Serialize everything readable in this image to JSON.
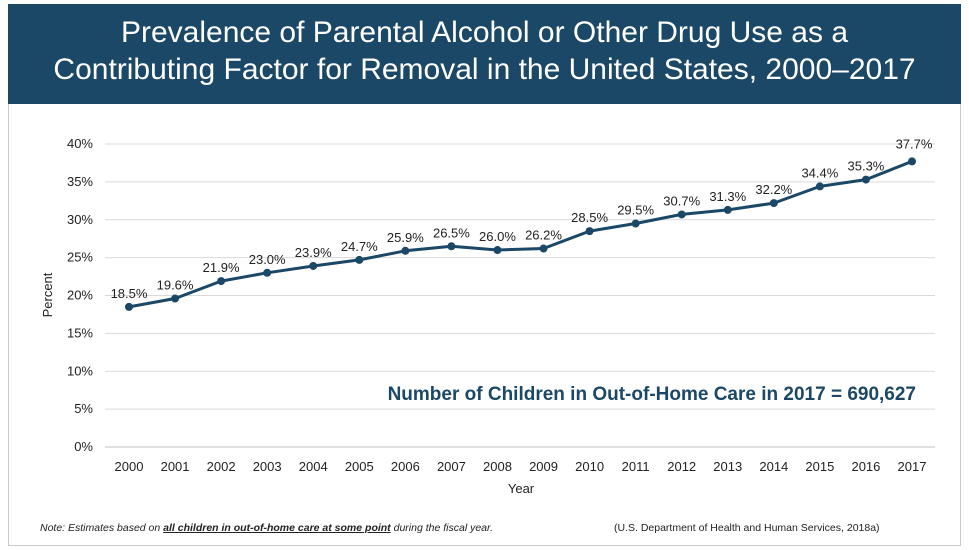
{
  "title_line1": "Prevalence of Parental Alcohol or Other Drug Use as a",
  "title_line2": "Contributing Factor for Removal in the United States, 2000–2017",
  "annotation": "Number of Children in Out-of-Home Care in 2017 = 690,627",
  "note": {
    "prefix": "Note: Estimates based on ",
    "emphasis": "all children in out-of-home care at some point",
    "suffix": " during the fiscal year."
  },
  "source": "(U.S. Department of Health and Human Services, 2018a)",
  "colors": {
    "title_bg": "#1b4866",
    "line": "#1b4866",
    "annotation": "#1b4866",
    "grid": "#d9d9d9"
  },
  "chart_data": {
    "type": "line",
    "title": "Prevalence of Parental Alcohol or Other Drug Use as a Contributing Factor for Removal in the United States, 2000–2017",
    "xlabel": "Year",
    "ylabel": "Percent",
    "ylim": [
      0,
      40
    ],
    "y_ticks": [
      "0%",
      "5%",
      "10%",
      "15%",
      "20%",
      "25%",
      "30%",
      "35%",
      "40%"
    ],
    "grid": true,
    "categories": [
      "2000",
      "2001",
      "2002",
      "2003",
      "2004",
      "2005",
      "2006",
      "2007",
      "2008",
      "2009",
      "2010",
      "2011",
      "2012",
      "2013",
      "2014",
      "2015",
      "2016",
      "2017"
    ],
    "series": [
      {
        "values": [
          18.5,
          19.6,
          21.9,
          23.0,
          23.9,
          24.7,
          25.9,
          26.5,
          26.0,
          26.2,
          28.5,
          29.5,
          30.7,
          31.3,
          32.2,
          34.4,
          35.3,
          37.7
        ],
        "labels": [
          "18.5%",
          "19.6%",
          "21.9%",
          "23.0%",
          "23.9%",
          "24.7%",
          "25.9%",
          "26.5%",
          "26.0%",
          "26.2%",
          "28.5%",
          "29.5%",
          "30.7%",
          "31.3%",
          "32.2%",
          "34.4%",
          "35.3%",
          "37.7%"
        ]
      }
    ]
  }
}
